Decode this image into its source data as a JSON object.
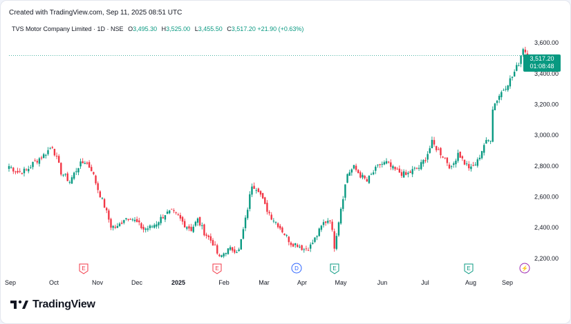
{
  "header": {
    "created": "Created with TradingView.com, Sep 11, 2025 08:51 UTC",
    "symbol": "TVS Motor Company Limited · 1D · NSE",
    "o_label": "O",
    "o_value": "3,495.30",
    "h_label": "H",
    "h_value": "3,525.00",
    "l_label": "L",
    "l_value": "3,455.50",
    "c_label": "C",
    "c_value": "3,517.20",
    "change": "+21.90 (+0.63%)"
  },
  "price_tag": {
    "price": "3,517.20",
    "countdown": "01:08:48"
  },
  "brand": {
    "logo_text": "TradingView"
  },
  "colors": {
    "up": "#089981",
    "down": "#f23645",
    "text": "#131722",
    "last_price_line": "#089981",
    "dividend": "#2962ff",
    "split": "#9c27b0"
  },
  "chart_data": {
    "type": "candlestick",
    "ylim": [
      2150,
      3650
    ],
    "yticks": [
      2200,
      2400,
      2600,
      2800,
      3000,
      3200,
      3400,
      3600
    ],
    "ytick_labels": [
      "2,200.00",
      "2,400.00",
      "2,600.00",
      "2,800.00",
      "3,000.00",
      "3,200.00",
      "3,400.00",
      "3,600.00"
    ],
    "x_labels": [
      {
        "label": "Sep",
        "bold": false
      },
      {
        "label": "Oct",
        "bold": false
      },
      {
        "label": "Nov",
        "bold": false
      },
      {
        "label": "Dec",
        "bold": false
      },
      {
        "label": "2025",
        "bold": true
      },
      {
        "label": "Feb",
        "bold": false
      },
      {
        "label": "Mar",
        "bold": false
      },
      {
        "label": "Apr",
        "bold": false
      },
      {
        "label": "May",
        "bold": false
      },
      {
        "label": "Jun",
        "bold": false
      },
      {
        "label": "Jul",
        "bold": false
      },
      {
        "label": "Aug",
        "bold": false
      },
      {
        "label": "Sep",
        "bold": false
      }
    ],
    "last_price": 3517.2,
    "anchors": [
      [
        0,
        2800
      ],
      [
        4,
        2760
      ],
      [
        8,
        2770
      ],
      [
        12,
        2830
      ],
      [
        16,
        2870
      ],
      [
        20,
        2930
      ],
      [
        24,
        2760
      ],
      [
        28,
        2700
      ],
      [
        32,
        2800
      ],
      [
        35,
        2830
      ],
      [
        38,
        2780
      ],
      [
        41,
        2650
      ],
      [
        44,
        2540
      ],
      [
        47,
        2410
      ],
      [
        50,
        2400
      ],
      [
        53,
        2460
      ],
      [
        56,
        2470
      ],
      [
        59,
        2430
      ],
      [
        62,
        2390
      ],
      [
        65,
        2400
      ],
      [
        68,
        2430
      ],
      [
        72,
        2490
      ],
      [
        75,
        2500
      ],
      [
        78,
        2470
      ],
      [
        81,
        2420
      ],
      [
        84,
        2390
      ],
      [
        87,
        2450
      ],
      [
        90,
        2370
      ],
      [
        94,
        2300
      ],
      [
        97,
        2200
      ],
      [
        100,
        2250
      ],
      [
        103,
        2260
      ],
      [
        106,
        2250
      ],
      [
        109,
        2450
      ],
      [
        112,
        2680
      ],
      [
        115,
        2650
      ],
      [
        118,
        2540
      ],
      [
        121,
        2470
      ],
      [
        124,
        2420
      ],
      [
        127,
        2360
      ],
      [
        130,
        2300
      ],
      [
        133,
        2290
      ],
      [
        136,
        2260
      ],
      [
        139,
        2280
      ],
      [
        142,
        2350
      ],
      [
        145,
        2430
      ],
      [
        148,
        2460
      ],
      [
        150,
        2280
      ],
      [
        153,
        2530
      ],
      [
        156,
        2750
      ],
      [
        159,
        2790
      ],
      [
        162,
        2740
      ],
      [
        165,
        2700
      ],
      [
        168,
        2760
      ],
      [
        171,
        2810
      ],
      [
        174,
        2820
      ],
      [
        177,
        2780
      ],
      [
        180,
        2760
      ],
      [
        183,
        2740
      ],
      [
        186,
        2770
      ],
      [
        189,
        2790
      ],
      [
        192,
        2850
      ],
      [
        195,
        2950
      ],
      [
        198,
        2900
      ],
      [
        201,
        2850
      ],
      [
        204,
        2780
      ],
      [
        207,
        2890
      ],
      [
        210,
        2820
      ],
      [
        213,
        2780
      ],
      [
        216,
        2830
      ],
      [
        219,
        2940
      ],
      [
        222,
        2980
      ],
      [
        223,
        3180
      ],
      [
        226,
        3260
      ],
      [
        229,
        3320
      ],
      [
        232,
        3380
      ],
      [
        235,
        3470
      ],
      [
        237,
        3570
      ],
      [
        239,
        3517
      ]
    ],
    "events": [
      {
        "label": "E",
        "kind": "earnings",
        "month": "Oct"
      },
      {
        "label": "E",
        "kind": "earnings",
        "month": "Jan"
      },
      {
        "label": "D",
        "kind": "dividend",
        "month": "Mar"
      },
      {
        "label": "E",
        "kind": "earnings",
        "month": "Apr"
      },
      {
        "label": "E",
        "kind": "earnings",
        "month": "Aug"
      },
      {
        "label": "⚡",
        "kind": "split",
        "month": "Aug"
      }
    ]
  }
}
